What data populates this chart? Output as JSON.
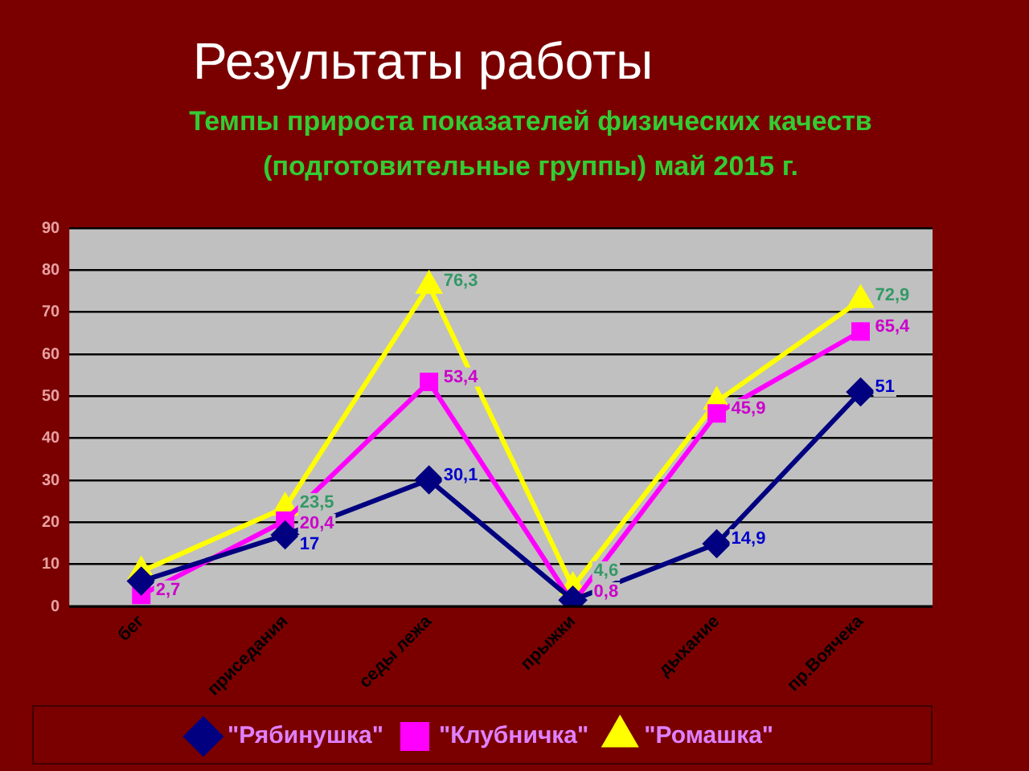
{
  "chart_data": {
    "type": "line",
    "title": "Результаты работы",
    "subtitle": "Темпы прироста показателей физических качеств (подготовительные группы) май 2015 г.",
    "categories": [
      "бег",
      "приседания",
      "седы лежа",
      "прыжки",
      "дыхание",
      "пр.Воячека"
    ],
    "series": [
      {
        "name": "\"Рябинушка\"",
        "color": "#000080",
        "marker": "diamond",
        "values": [
          6,
          17,
          30.1,
          1.5,
          14.9,
          51
        ],
        "value_labels": [
          null,
          "17",
          "30,1",
          null,
          "14,9",
          "51"
        ]
      },
      {
        "name": "\"Клубничка\"",
        "color": "#ff00ff",
        "marker": "square",
        "values": [
          2.7,
          20.4,
          53.4,
          0.8,
          45.9,
          65.4
        ],
        "value_labels": [
          "2,7",
          "20,4",
          "53,4",
          "0,8",
          "45,9",
          "65,4"
        ]
      },
      {
        "name": "\"Ромашка\"",
        "color": "#ffff00",
        "marker": "triangle",
        "values": [
          8.3,
          23.5,
          76.3,
          4.6,
          48.7,
          72.9
        ],
        "value_labels": [
          null,
          "23,5",
          "76,3",
          "4,6",
          null,
          "72,9"
        ]
      }
    ],
    "ylim": [
      0,
      90
    ],
    "yticks": [
      0,
      10,
      20,
      30,
      40,
      50,
      60,
      70,
      80,
      90
    ],
    "grid": "y",
    "legend": "bottom"
  }
}
